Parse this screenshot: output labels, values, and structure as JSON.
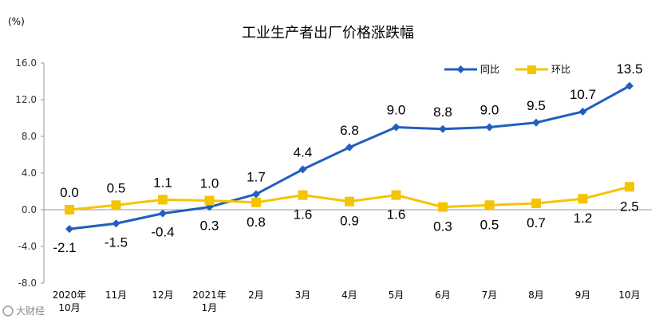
{
  "title": "工业生产者出厂价格涨跌幅",
  "unit_label": "(%)",
  "watermark": "大财经",
  "colors": {
    "yoy": "#1f5fbf",
    "mom": "#f5c400",
    "axis": "#999999"
  },
  "chart_data": {
    "type": "line",
    "categories": [
      [
        "2020年",
        "10月"
      ],
      [
        "11月"
      ],
      [
        "12月"
      ],
      [
        "2021年",
        "1月"
      ],
      [
        "2月"
      ],
      [
        "3月"
      ],
      [
        "4月"
      ],
      [
        "5月"
      ],
      [
        "6月"
      ],
      [
        "7月"
      ],
      [
        "8月"
      ],
      [
        "9月"
      ],
      [
        "10月"
      ]
    ],
    "series": [
      {
        "name": "同比",
        "marker": "diamond",
        "values": [
          -2.1,
          -1.5,
          -0.4,
          0.3,
          1.7,
          4.4,
          6.8,
          9.0,
          8.8,
          9.0,
          9.5,
          10.7,
          13.5
        ],
        "labels": [
          "-2.1",
          "-1.5",
          "-0.4",
          "0.3",
          "1.7",
          "4.4",
          "6.8",
          "9.0",
          "8.8",
          "9.0",
          "9.5",
          "10.7",
          "13.5"
        ]
      },
      {
        "name": "环比",
        "marker": "square",
        "values": [
          0.0,
          0.5,
          1.1,
          1.0,
          0.8,
          1.6,
          0.9,
          1.6,
          0.3,
          0.5,
          0.7,
          1.2,
          2.5
        ],
        "labels": [
          "0.0",
          "0.5",
          "1.1",
          "1.0",
          "0.8",
          "1.6",
          "0.9",
          "1.6",
          "0.3",
          "0.5",
          "0.7",
          "1.2",
          "2.5"
        ]
      }
    ],
    "ylim": [
      -8.0,
      16.0
    ],
    "yticks": [
      "-8.0",
      "-4.0",
      "0.0",
      "4.0",
      "8.0",
      "12.0",
      "16.0"
    ],
    "ytick_values": [
      -8,
      -4,
      0,
      4,
      8,
      12,
      16
    ],
    "legend_position": "top-right",
    "grid": false
  }
}
